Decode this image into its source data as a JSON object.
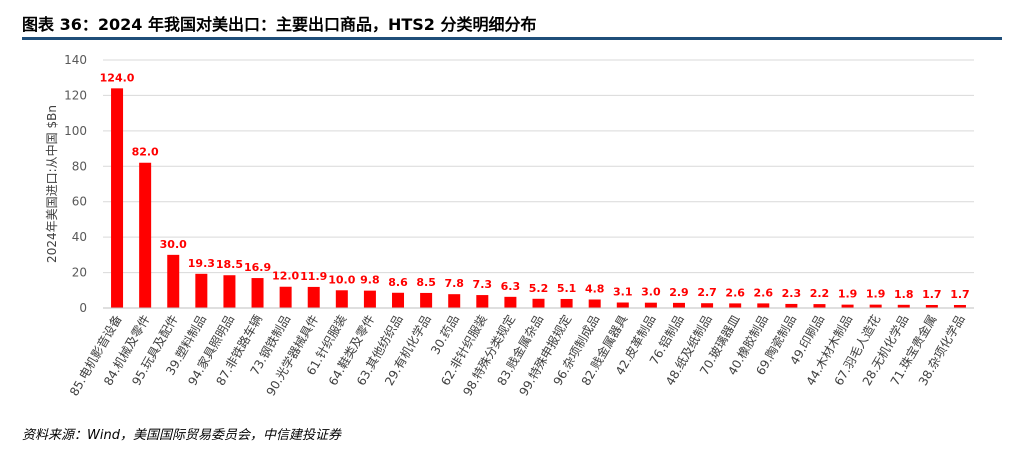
{
  "title": "图表 36：2024 年我国对美出口：主要出口商品，HTS2 分类明细分布",
  "source": "资料来源：Wind，美国国际贸易委员会，中信建投证券",
  "colors": {
    "bar": "#FF0000",
    "label": "#FF0000",
    "title_rule": "#1F4E79",
    "grid": "#D9D9D9"
  },
  "chart_data": {
    "type": "bar",
    "title": "",
    "xlabel": "",
    "ylabel": "2024年美国进口:从中国 $Bn",
    "ylim": [
      0,
      140
    ],
    "yticks": [
      0,
      20,
      40,
      60,
      80,
      100,
      120,
      140
    ],
    "grid": true,
    "categories": [
      "85.电机影音设备",
      "84.机械及零件",
      "95.玩具及配件",
      "39.塑料制品",
      "94.家具照明品",
      "87.非铁路车辆",
      "73.钢铁制品",
      "90.光学器械具件",
      "61.针织服装",
      "64.鞋类及零件",
      "63.其他纺织品",
      "29.有机化学品",
      "30.药品",
      "62.非针织服装",
      "98.特殊分类规定",
      "83.贱金属杂品",
      "99.特殊申报规定",
      "96.杂项制成品",
      "82.贱金属器具",
      "42.皮革制品",
      "76.铝制品",
      "48.纸及纸制品",
      "70.玻璃器皿",
      "40.橡胶制品",
      "69.陶瓷制品",
      "49.印刷品",
      "44.木材木制品",
      "67.羽毛人造花",
      "28.无机化学品",
      "71.珠宝贵金属",
      "38.杂项化学品"
    ],
    "values": [
      124.0,
      82.0,
      30.0,
      19.3,
      18.5,
      16.9,
      12.0,
      11.9,
      10.0,
      9.8,
      8.6,
      8.5,
      7.8,
      7.3,
      6.3,
      5.2,
      5.1,
      4.8,
      3.1,
      3.0,
      2.9,
      2.7,
      2.6,
      2.6,
      2.3,
      2.2,
      1.9,
      1.9,
      1.8,
      1.7,
      1.7
    ],
    "value_labels": [
      "124.0",
      "82.0",
      "30.0",
      "19.3",
      "18.5",
      "16.9",
      "12.0",
      "11.9",
      "10.0",
      "9.8",
      "8.6",
      "8.5",
      "7.8",
      "7.3",
      "6.3",
      "5.2",
      "5.1",
      "4.8",
      "3.1",
      "3.0",
      "2.9",
      "2.7",
      "2.6",
      "2.6",
      "2.3",
      "2.2",
      "1.9",
      "1.9",
      "1.8",
      "1.7",
      "1.7"
    ]
  }
}
